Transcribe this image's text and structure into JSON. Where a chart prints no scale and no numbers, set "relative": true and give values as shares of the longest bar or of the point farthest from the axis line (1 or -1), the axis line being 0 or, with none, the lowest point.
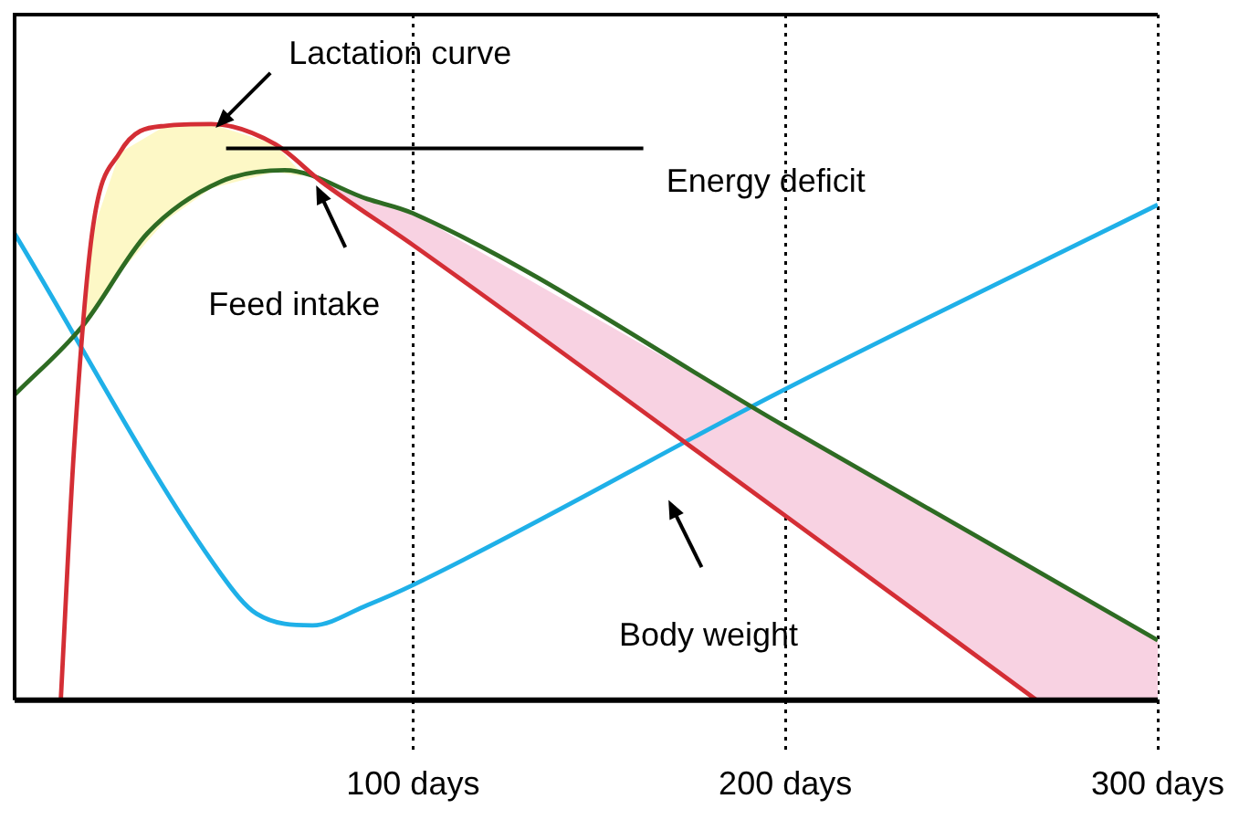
{
  "chart_data": {
    "type": "line",
    "relative": true,
    "xlim": [
      -7,
      300
    ],
    "xticks": [
      {
        "value": 100,
        "label": "100 days"
      },
      {
        "value": 200,
        "label": "200 days"
      },
      {
        "value": 300,
        "label": "300 days"
      }
    ],
    "grid": "x",
    "legend": false,
    "marker": "none",
    "line_style": "solid",
    "series": [
      {
        "color": "#d42e35",
        "x": [
          5.4,
          8.9,
          13.8,
          21.2,
          33.5,
          45.8,
          63,
          75.4,
          100,
          200,
          267.5
        ],
        "values": [
          0,
          0.43,
          0.81,
          0.95,
          0.997,
          1,
          0.965,
          0.9,
          0.79,
          0.32,
          0
        ]
      },
      {
        "color": "#2e6b23",
        "x": [
          -7,
          11.3,
          28.6,
          48.3,
          65.5,
          87.7,
          100,
          200,
          300
        ],
        "values": [
          0.53,
          0.65,
          0.81,
          0.9,
          0.92,
          0.87,
          0.845,
          0.475,
          0.104
        ]
      },
      {
        "color": "#1fb0e8",
        "x": [
          -7,
          48.3,
          58,
          73,
          87.7,
          100,
          200,
          300
        ],
        "values": [
          0.81,
          0.22,
          0.15,
          0.13,
          0.165,
          0.2,
          0.54,
          0.86
        ]
      },
      {
        "type": "area",
        "color": "#fdf8c6",
        "x": [
          11,
          13.8,
          21.2,
          33.5,
          45.8,
          63,
          70
        ],
        "values": [
          0.63,
          0.81,
          0.95,
          0.997,
          1,
          0.965,
          0.915
        ]
      },
      {
        "type": "area",
        "color": "#f8d2e2",
        "x": [
          70,
          75.4,
          87.7,
          100,
          200,
          267.5,
          300
        ],
        "values": [
          0.915,
          0.9,
          0.87,
          0.845,
          0.475,
          0.225,
          0.104
        ]
      }
    ],
    "annotations": [
      {
        "text": "Lactation curve",
        "x": 46,
        "y": 1
      },
      {
        "text": "Feed intake",
        "x": 73,
        "y": 0.9
      },
      "Body weight",
      "Energy deficit"
    ]
  }
}
